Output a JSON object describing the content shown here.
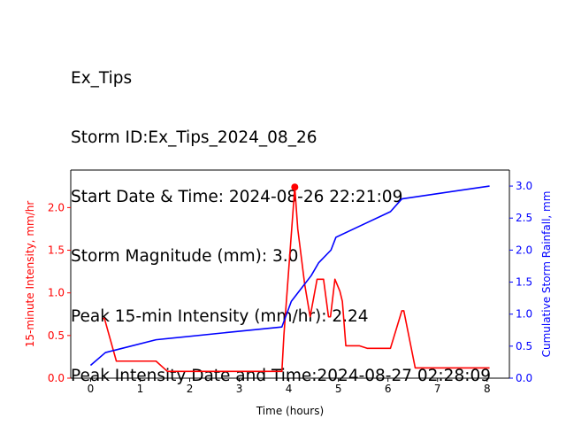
{
  "header": {
    "lines": [
      "Ex_Tips",
      "Storm ID:Ex_Tips_2024_08_26",
      "Start Date & Time: 2024-08-26 22:21:09",
      "Storm Magnitude (mm): 3.0",
      "Peak 15-min Intensity (mm/hr): 2.24",
      "Peak Intensity Date and Time:2024-08-27 02:28:09"
    ]
  },
  "chart_data": {
    "type": "line",
    "xlabel": "Time (hours)",
    "ylabel_left": "15-minute Intensity, mm/hr",
    "ylabel_right": "Cumulative Storm Rainfall, mm",
    "xlim": [
      -0.4,
      8.45
    ],
    "ylim_left": [
      0,
      2.44
    ],
    "ylim_right": [
      0,
      3.25
    ],
    "xticks": [
      0,
      1,
      2,
      3,
      4,
      5,
      6,
      7,
      8
    ],
    "xtick_labels": [
      "0",
      "1",
      "2",
      "3",
      "4",
      "5",
      "6",
      "7",
      "8"
    ],
    "yticks_left": [
      0.0,
      0.5,
      1.0,
      1.5,
      2.0
    ],
    "ytick_labels_left": [
      "0.0",
      "0.5",
      "1.0",
      "1.5",
      "2.0"
    ],
    "yticks_right": [
      0.0,
      0.5,
      1.0,
      1.5,
      2.0,
      2.5,
      3.0
    ],
    "ytick_labels_right": [
      "0.0",
      "0.5",
      "1.0",
      "1.5",
      "2.0",
      "2.5",
      "3.0"
    ],
    "grid": false,
    "colors": {
      "intensity": "#ff0000",
      "cumulative": "#0000ff",
      "axis": "#000000"
    },
    "series": [
      {
        "axis": "left",
        "color": "#ff0000",
        "points": [
          [
            0.25,
            0.7
          ],
          [
            0.28,
            0.7
          ],
          [
            0.52,
            0.2
          ],
          [
            1.32,
            0.2
          ],
          [
            1.55,
            0.08
          ],
          [
            3.86,
            0.08
          ],
          [
            3.9,
            0.5
          ],
          [
            4.12,
            2.24
          ],
          [
            4.18,
            1.75
          ],
          [
            4.32,
            1.1
          ],
          [
            4.43,
            0.72
          ],
          [
            4.57,
            1.16
          ],
          [
            4.7,
            1.16
          ],
          [
            4.8,
            0.72
          ],
          [
            4.84,
            0.72
          ],
          [
            4.93,
            1.16
          ],
          [
            5.03,
            1.02
          ],
          [
            5.08,
            0.9
          ],
          [
            5.15,
            0.38
          ],
          [
            5.42,
            0.38
          ],
          [
            5.58,
            0.35
          ],
          [
            5.65,
            0.35
          ],
          [
            6.05,
            0.35
          ],
          [
            6.28,
            0.79
          ],
          [
            6.32,
            0.79
          ],
          [
            6.55,
            0.12
          ],
          [
            8.05,
            0.12
          ]
        ]
      },
      {
        "axis": "right",
        "color": "#0000ff",
        "points": [
          [
            0.0,
            0.2
          ],
          [
            0.3,
            0.4
          ],
          [
            1.32,
            0.6
          ],
          [
            3.86,
            0.8
          ],
          [
            4.05,
            1.2
          ],
          [
            4.25,
            1.4
          ],
          [
            4.45,
            1.6
          ],
          [
            4.6,
            1.8
          ],
          [
            4.85,
            2.0
          ],
          [
            4.95,
            2.2
          ],
          [
            5.5,
            2.4
          ],
          [
            6.05,
            2.6
          ],
          [
            6.28,
            2.8
          ],
          [
            8.05,
            3.0
          ]
        ]
      }
    ],
    "peak_marker": {
      "x": 4.12,
      "y": 2.24,
      "color": "#ff0000"
    }
  }
}
